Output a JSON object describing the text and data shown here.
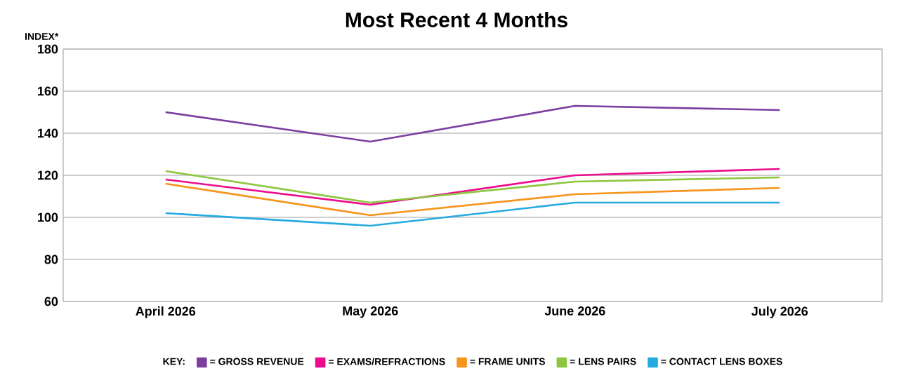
{
  "chart_data": {
    "type": "line",
    "title": "Most Recent 4 Months",
    "ylabel": "INDEX*",
    "legend_title": "KEY:",
    "categories": [
      "April 2026",
      "May 2026",
      "June 2026",
      "July 2026"
    ],
    "series": [
      {
        "name": "= GROSS REVENUE",
        "color": "#7b3fa0",
        "values": [
          150,
          136,
          153,
          151
        ]
      },
      {
        "name": "= EXAMS/REFRACTIONS",
        "color": "#ec0c8c",
        "values": [
          118,
          106,
          120,
          123
        ]
      },
      {
        "name": "= FRAME UNITS",
        "color": "#f7941d",
        "values": [
          116,
          101,
          111,
          114
        ]
      },
      {
        "name": "= LENS PAIRS",
        "color": "#8dc63f",
        "values": [
          122,
          107,
          117,
          119
        ]
      },
      {
        "name": "= CONTACT LENS BOXES",
        "color": "#27aae1",
        "values": [
          102,
          96,
          107,
          107
        ]
      }
    ],
    "ylim": [
      60,
      180
    ],
    "yticks": [
      60,
      80,
      100,
      120,
      140,
      160,
      180
    ],
    "grid": "y",
    "legend": "bottom",
    "marker": "none",
    "line_style": "solid"
  }
}
